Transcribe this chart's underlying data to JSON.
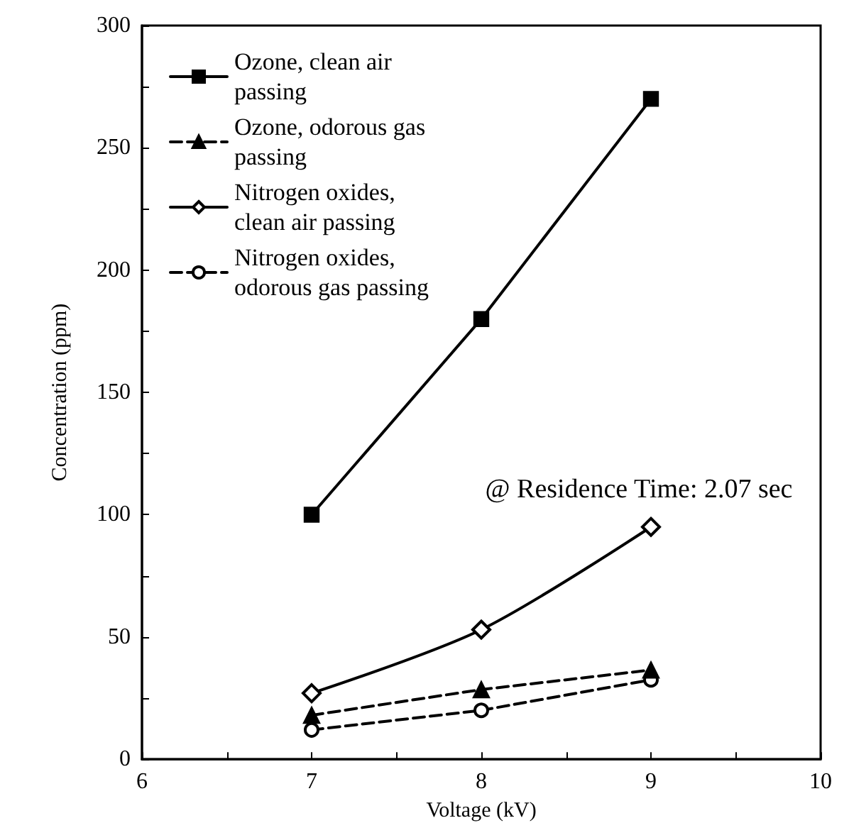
{
  "chart_data": {
    "type": "line",
    "xlabel": "Voltage (kV)",
    "ylabel": "Concentration (ppm)",
    "x": [
      7,
      8,
      9
    ],
    "series": [
      {
        "name": "Ozone, clean air passing",
        "color": "#000000",
        "values": [
          100,
          180,
          270
        ],
        "marker": "square",
        "line_style": "solid"
      },
      {
        "name": "Ozone, odorous gas passing",
        "color": "#000000",
        "values": [
          18,
          28.5,
          36.5
        ],
        "marker": "triangle",
        "line_style": "dashed"
      },
      {
        "name": "Nitrogen oxides, clean air passing",
        "color": "#000000",
        "values": [
          27,
          53,
          95
        ],
        "marker": "diamond",
        "line_style": "solid"
      },
      {
        "name": "Nitrogen oxides, odorous gas passing",
        "color": "#000000",
        "values": [
          12,
          20,
          32.5
        ],
        "marker": "circle",
        "line_style": "dashed"
      }
    ],
    "xlim": [
      6,
      10
    ],
    "xticks": [
      6,
      {
        "value": 6.5,
        "label": null
      },
      7,
      {
        "value": 7.5,
        "label": null
      },
      8,
      {
        "value": 8.5,
        "label": null
      },
      9,
      {
        "value": 9.5,
        "label": null
      },
      10
    ],
    "ylim": [
      0,
      300
    ],
    "yticks": [
      0,
      {
        "value": 25,
        "label": null
      },
      50,
      {
        "value": 75,
        "label": null
      },
      100,
      {
        "value": 125,
        "label": null
      },
      150,
      {
        "value": 175,
        "label": null
      },
      200,
      {
        "value": 225,
        "label": null
      },
      250,
      {
        "value": 275,
        "label": null
      },
      300
    ],
    "annotations": [
      "@ Residence Time: 2.07 sec"
    ],
    "legend": "top left",
    "grid": false
  }
}
